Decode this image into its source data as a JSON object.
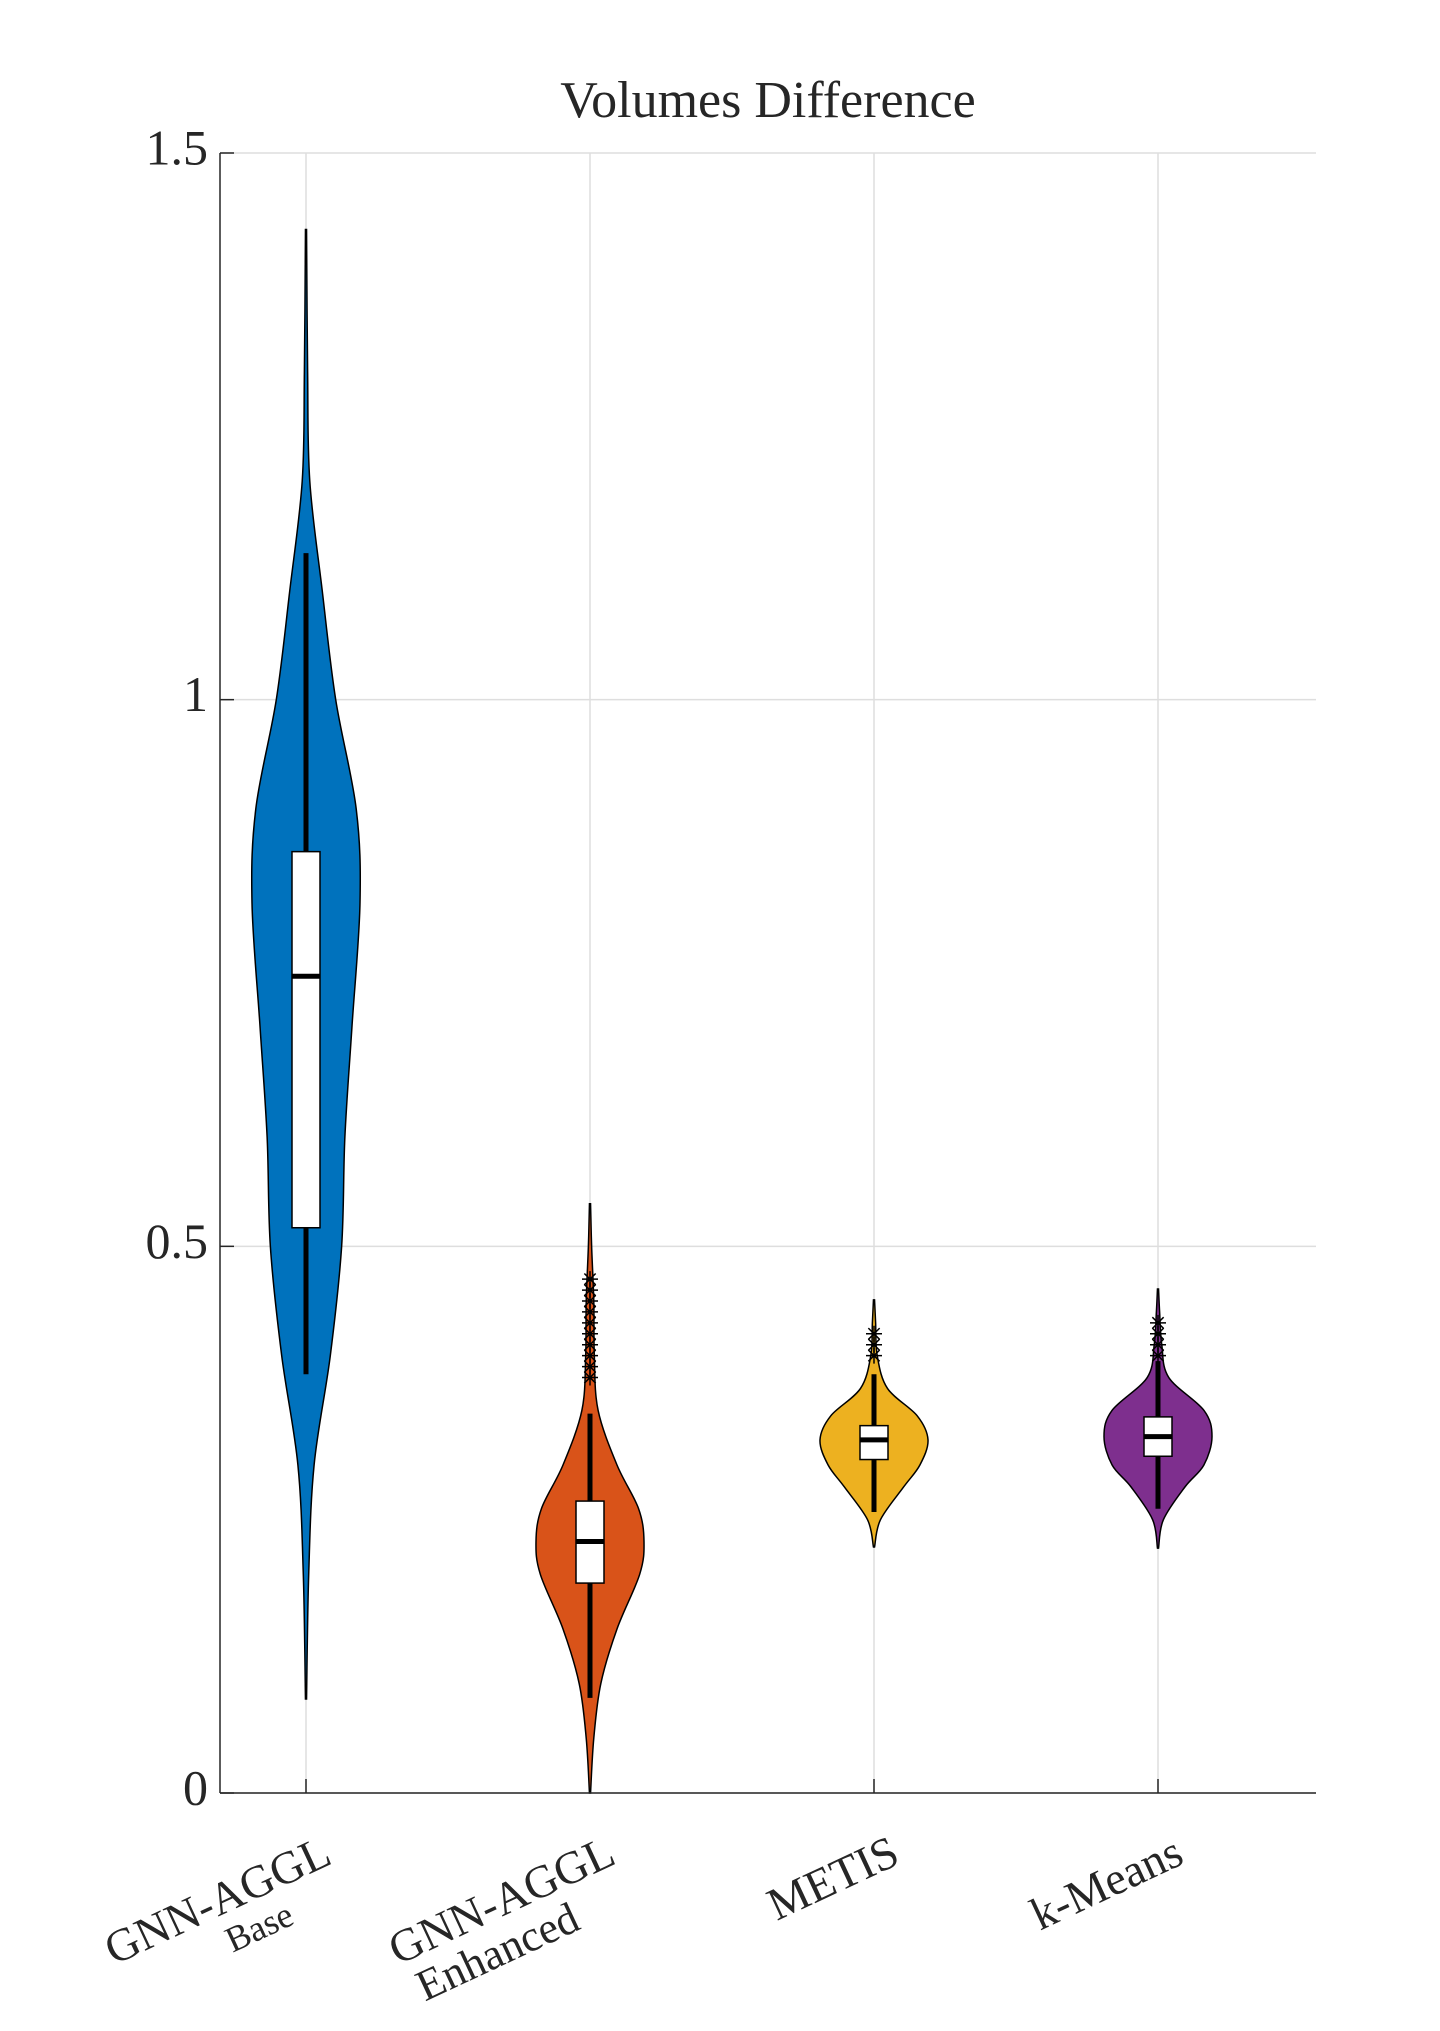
{
  "chart_data": {
    "type": "violin",
    "title": "Volumes Difference",
    "categories": [
      [
        "GNN-AGGL",
        "Base"
      ],
      [
        "GNN-AGGL",
        "Enhanced"
      ],
      [
        "METIS"
      ],
      [
        "k-Means"
      ]
    ],
    "ylim": [
      0,
      1.5
    ],
    "yticks": [
      0,
      0.5,
      1,
      1.5
    ],
    "grid": true,
    "violins": [
      {
        "color": "#0072BD",
        "median": 0.747,
        "q1": 0.517,
        "q3": 0.861,
        "whisker_low": 0.383,
        "whisker_high": 1.134,
        "outliers": [],
        "kde_y": [
          0.086,
          0.2,
          0.3,
          0.4,
          0.5,
          0.6,
          0.7,
          0.814,
          0.9,
          1.0,
          1.1,
          1.2,
          1.3,
          1.43
        ],
        "kde_width": [
          0.01,
          0.05,
          0.15,
          0.45,
          0.66,
          0.72,
          0.85,
          1.0,
          0.93,
          0.55,
          0.3,
          0.07,
          0.03,
          0.01
        ]
      },
      {
        "color": "#D95319",
        "median": 0.23,
        "q1": 0.192,
        "q3": 0.267,
        "whisker_low": 0.087,
        "whisker_high": 0.347,
        "outliers": [
          0.38,
          0.39,
          0.4,
          0.41,
          0.42,
          0.43,
          0.44,
          0.45,
          0.46,
          0.47
        ],
        "kde_y": [
          0.0,
          0.05,
          0.1,
          0.15,
          0.2,
          0.23,
          0.26,
          0.3,
          0.35,
          0.4,
          0.45,
          0.5,
          0.539
        ],
        "kde_width": [
          0.01,
          0.07,
          0.2,
          0.5,
          0.92,
          1.0,
          0.9,
          0.5,
          0.15,
          0.08,
          0.07,
          0.03,
          0.01
        ]
      },
      {
        "color": "#EDB120",
        "median": 0.323,
        "q1": 0.305,
        "q3": 0.336,
        "whisker_low": 0.257,
        "whisker_high": 0.383,
        "outliers": [
          0.4,
          0.41,
          0.42
        ],
        "kde_y": [
          0.225,
          0.25,
          0.28,
          0.3,
          0.323,
          0.345,
          0.37,
          0.4,
          0.43,
          0.451
        ],
        "kde_width": [
          0.01,
          0.12,
          0.55,
          0.85,
          1.0,
          0.8,
          0.25,
          0.06,
          0.03,
          0.01
        ]
      },
      {
        "color": "#7E2F8E",
        "median": 0.326,
        "q1": 0.308,
        "q3": 0.344,
        "whisker_low": 0.26,
        "whisker_high": 0.395,
        "outliers": [
          0.4,
          0.41,
          0.42,
          0.43
        ],
        "kde_y": [
          0.224,
          0.25,
          0.28,
          0.3,
          0.326,
          0.35,
          0.38,
          0.41,
          0.44,
          0.461
        ],
        "kde_width": [
          0.01,
          0.1,
          0.5,
          0.85,
          1.0,
          0.85,
          0.2,
          0.07,
          0.03,
          0.01
        ]
      }
    ]
  }
}
